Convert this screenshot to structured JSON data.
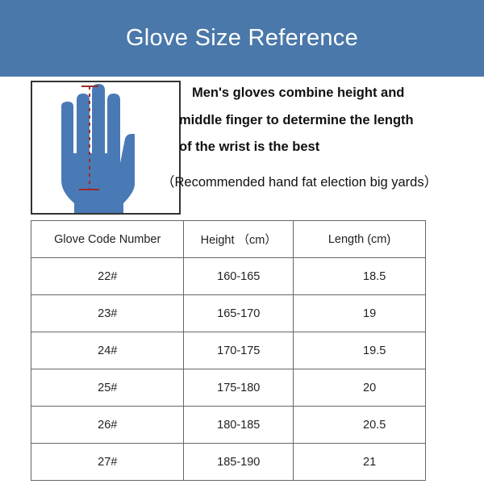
{
  "title": "Glove Size Reference",
  "description": [
    "Men's gloves combine height and",
    "middle finger to determine the length",
    "of the wrist is the best"
  ],
  "note": "（Recommended hand fat election big yards）",
  "colors": {
    "banner": "#4a78aa",
    "hand": "#4a7ab5",
    "measure": "#9b2a2a"
  },
  "table": {
    "headers": [
      "Glove Code Number",
      "Height （cm）",
      "Length (cm)"
    ],
    "rows": [
      [
        "22#",
        "160-165",
        "18.5"
      ],
      [
        "23#",
        "165-170",
        "19"
      ],
      [
        "24#",
        "170-175",
        "19.5"
      ],
      [
        "25#",
        "175-180",
        "20"
      ],
      [
        "26#",
        "180-185",
        "20.5"
      ],
      [
        "27#",
        "185-190",
        "21"
      ]
    ]
  }
}
